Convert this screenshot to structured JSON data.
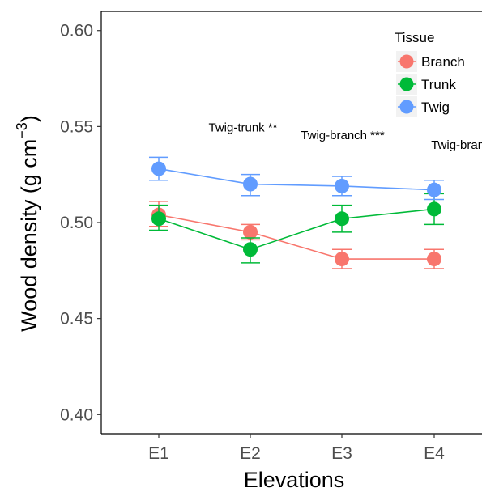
{
  "chart_data": {
    "type": "line",
    "xlabel": "Elevations",
    "ylabel_main": "Wood density (g cm",
    "ylabel_sup": "−3",
    "ylabel_close": ")",
    "categories": [
      "E1",
      "E2",
      "E3",
      "E4"
    ],
    "ylim": [
      0.39,
      0.61
    ],
    "yticks": [
      0.4,
      0.45,
      0.5,
      0.55,
      0.6
    ],
    "ytick_labels": [
      "0.40",
      "0.45",
      "0.50",
      "0.55",
      "0.60"
    ],
    "grid": false,
    "legend": {
      "title": "Tissue",
      "placement": "top-right"
    },
    "series": [
      {
        "name": "Branch",
        "color": "#F8766D",
        "values": [
          0.504,
          0.495,
          0.481,
          0.481
        ],
        "err_low": [
          0.498,
          0.491,
          0.476,
          0.476
        ],
        "err_high": [
          0.511,
          0.499,
          0.486,
          0.486
        ]
      },
      {
        "name": "Trunk",
        "color": "#00BA38",
        "values": [
          0.502,
          0.486,
          0.502,
          0.507
        ],
        "err_low": [
          0.496,
          0.479,
          0.495,
          0.499
        ],
        "err_high": [
          0.509,
          0.492,
          0.509,
          0.515
        ]
      },
      {
        "name": "Twig",
        "color": "#619CFF",
        "values": [
          0.528,
          0.52,
          0.519,
          0.517
        ],
        "err_low": [
          0.522,
          0.514,
          0.514,
          0.512
        ],
        "err_high": [
          0.534,
          0.525,
          0.524,
          0.522
        ]
      }
    ],
    "annotations": [
      {
        "text": "Twig-trunk **",
        "category": "E2",
        "y": 0.5495
      },
      {
        "text": "Twig-branch ***",
        "category": "E3",
        "y": 0.5455
      },
      {
        "text": "Twig-branch **",
        "category": "E4",
        "y": 0.5405
      }
    ]
  }
}
